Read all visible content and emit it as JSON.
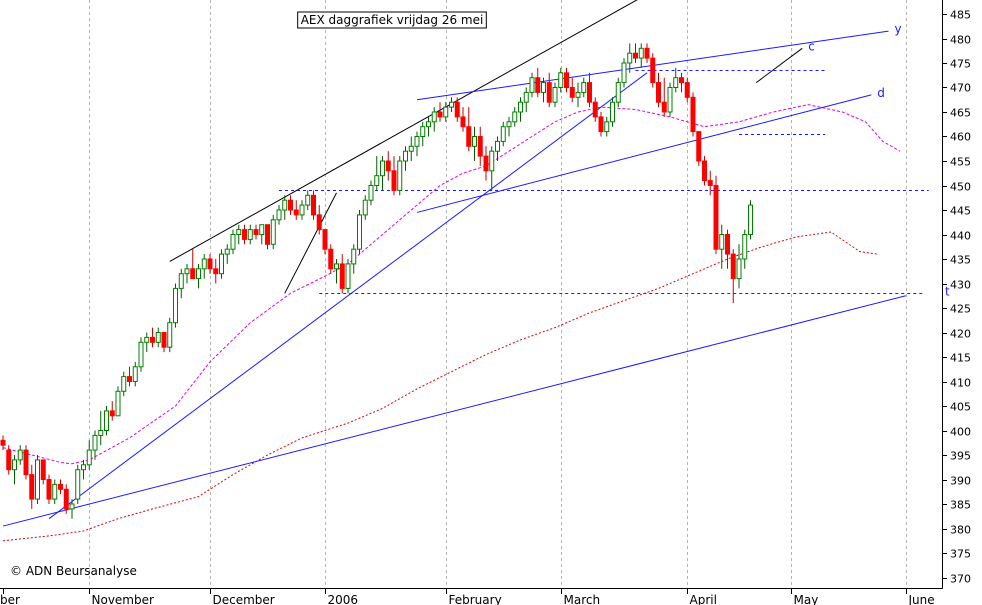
{
  "chart_data": {
    "type": "candlestick",
    "title": "AEX daggrafiek vrijdag 26 mei",
    "credit": "© ADN Beursanalyse",
    "ylim": [
      368,
      488
    ],
    "y_ticks": [
      370,
      375,
      380,
      385,
      390,
      395,
      400,
      405,
      410,
      415,
      420,
      425,
      430,
      435,
      440,
      445,
      450,
      455,
      460,
      465,
      470,
      475,
      480,
      485
    ],
    "months": [
      {
        "label": "ber",
        "start_day": 0
      },
      {
        "label": "November",
        "start_day": 15
      },
      {
        "label": "December",
        "start_day": 36
      },
      {
        "label": "2006",
        "start_day": 56
      },
      {
        "label": "February",
        "start_day": 77
      },
      {
        "label": "March",
        "start_day": 97
      },
      {
        "label": "April",
        "start_day": 119
      },
      {
        "label": "May",
        "start_day": 137
      },
      {
        "label": "June",
        "start_day": 157
      }
    ],
    "candles": [
      [
        398,
        399,
        396,
        397
      ],
      [
        396,
        397,
        391,
        392
      ],
      [
        392,
        395,
        389,
        394
      ],
      [
        394,
        397,
        393,
        396
      ],
      [
        396,
        397,
        390,
        391
      ],
      [
        391,
        393,
        384,
        386
      ],
      [
        386,
        395,
        385,
        394
      ],
      [
        394,
        394,
        389,
        390
      ],
      [
        390,
        391,
        385,
        386
      ],
      [
        386,
        390,
        385,
        389
      ],
      [
        389,
        390,
        387,
        388
      ],
      [
        388,
        389,
        383,
        384
      ],
      [
        384,
        386,
        382,
        385
      ],
      [
        386,
        393,
        385,
        392
      ],
      [
        392,
        394,
        390,
        393
      ],
      [
        393,
        398,
        392,
        396
      ],
      [
        396,
        400,
        394,
        399
      ],
      [
        399,
        404,
        397,
        400
      ],
      [
        400,
        405,
        399,
        404
      ],
      [
        404,
        406,
        402,
        403
      ],
      [
        403,
        409,
        403,
        408
      ],
      [
        408,
        412,
        407,
        411
      ],
      [
        411,
        413,
        409,
        410
      ],
      [
        410,
        414,
        409,
        413
      ],
      [
        413,
        419,
        412,
        418
      ],
      [
        418,
        420,
        416,
        419
      ],
      [
        419,
        421,
        417,
        418
      ],
      [
        418,
        421,
        417,
        420
      ],
      [
        420,
        420,
        416,
        417
      ],
      [
        417,
        423,
        416,
        422
      ],
      [
        422,
        430,
        421,
        429
      ],
      [
        429,
        433,
        427,
        432
      ],
      [
        432,
        434,
        430,
        433
      ],
      [
        433,
        437,
        431,
        431
      ],
      [
        431,
        434,
        429,
        433
      ],
      [
        433,
        436,
        431,
        435
      ],
      [
        435,
        436,
        432,
        433
      ],
      [
        433,
        435,
        430,
        432
      ],
      [
        432,
        437,
        431,
        436
      ],
      [
        436,
        438,
        434,
        437
      ],
      [
        437,
        441,
        436,
        440
      ],
      [
        440,
        442,
        438,
        441
      ],
      [
        441,
        442,
        438,
        439
      ],
      [
        439,
        442,
        438,
        441
      ],
      [
        441,
        442,
        439,
        440
      ],
      [
        440,
        442,
        438,
        442
      ],
      [
        442,
        442,
        437,
        438
      ],
      [
        438,
        444,
        437,
        443
      ],
      [
        443,
        446,
        442,
        445
      ],
      [
        445,
        448,
        443,
        447
      ],
      [
        447,
        448,
        444,
        445
      ],
      [
        445,
        447,
        443,
        444
      ],
      [
        444,
        447,
        443,
        446
      ],
      [
        446,
        449,
        445,
        448
      ],
      [
        448,
        449,
        443,
        444
      ],
      [
        444,
        446,
        440,
        441
      ],
      [
        441,
        441,
        436,
        437
      ],
      [
        437,
        438,
        432,
        433
      ],
      [
        433,
        435,
        430,
        434
      ],
      [
        434,
        436,
        428,
        429
      ],
      [
        429,
        435,
        428,
        434
      ],
      [
        434,
        438,
        432,
        437
      ],
      [
        437,
        445,
        436,
        444
      ],
      [
        444,
        448,
        443,
        447
      ],
      [
        447,
        451,
        446,
        450
      ],
      [
        450,
        456,
        449,
        452
      ],
      [
        452,
        456,
        449,
        455
      ],
      [
        455,
        457,
        451,
        453
      ],
      [
        453,
        456,
        448,
        449
      ],
      [
        449,
        456,
        448,
        455
      ],
      [
        455,
        458,
        453,
        457
      ],
      [
        457,
        460,
        455,
        458
      ],
      [
        458,
        461,
        456,
        460
      ],
      [
        460,
        463,
        458,
        462
      ],
      [
        462,
        464,
        460,
        463
      ],
      [
        463,
        466,
        461,
        465
      ],
      [
        465,
        467,
        463,
        464
      ],
      [
        464,
        467,
        463,
        466
      ],
      [
        466,
        468,
        465,
        467
      ],
      [
        467,
        468,
        463,
        464
      ],
      [
        464,
        466,
        461,
        462
      ],
      [
        462,
        466,
        457,
        458
      ],
      [
        458,
        462,
        455,
        460
      ],
      [
        460,
        462,
        454,
        456
      ],
      [
        456,
        458,
        451,
        453
      ],
      [
        453,
        458,
        449,
        457
      ],
      [
        457,
        460,
        455,
        459
      ],
      [
        459,
        463,
        458,
        462
      ],
      [
        462,
        464,
        460,
        463
      ],
      [
        463,
        466,
        462,
        465
      ],
      [
        465,
        468,
        463,
        467
      ],
      [
        467,
        470,
        465,
        469
      ],
      [
        469,
        473,
        468,
        472
      ],
      [
        472,
        474,
        468,
        469
      ],
      [
        469,
        472,
        467,
        471
      ],
      [
        471,
        473,
        466,
        467
      ],
      [
        467,
        471,
        466,
        470
      ],
      [
        470,
        474,
        469,
        473
      ],
      [
        473,
        474,
        469,
        470
      ],
      [
        470,
        472,
        467,
        468
      ],
      [
        468,
        471,
        466,
        469
      ],
      [
        469,
        472,
        468,
        471
      ],
      [
        471,
        473,
        466,
        467
      ],
      [
        467,
        468,
        463,
        464
      ],
      [
        464,
        465,
        460,
        461
      ],
      [
        461,
        464,
        460,
        463
      ],
      [
        463,
        468,
        462,
        467
      ],
      [
        467,
        472,
        466,
        471
      ],
      [
        471,
        476,
        470,
        475
      ],
      [
        475,
        479,
        473,
        477
      ],
      [
        477,
        479,
        475,
        476
      ],
      [
        476,
        479,
        474,
        478
      ],
      [
        478,
        479,
        475,
        476
      ],
      [
        476,
        477,
        470,
        471
      ],
      [
        471,
        473,
        466,
        467
      ],
      [
        467,
        472,
        464,
        465
      ],
      [
        465,
        471,
        464,
        470
      ],
      [
        470,
        474,
        469,
        472
      ],
      [
        472,
        473,
        469,
        471
      ],
      [
        471,
        472,
        467,
        468
      ],
      [
        468,
        469,
        460,
        461
      ],
      [
        461,
        461,
        454,
        455
      ],
      [
        455,
        456,
        450,
        451
      ],
      [
        451,
        453,
        448,
        450
      ],
      [
        450,
        452,
        436,
        437
      ],
      [
        437,
        442,
        433,
        440
      ],
      [
        440,
        441,
        433,
        436
      ],
      [
        436,
        437,
        426,
        431
      ],
      [
        431,
        438,
        429,
        435
      ],
      [
        435,
        441,
        433,
        440
      ],
      [
        440,
        447,
        439,
        446
      ]
    ],
    "ma_short": [
      [
        0,
        396.5
      ],
      [
        10,
        393.5
      ],
      [
        12,
        393.2
      ],
      [
        15,
        394
      ],
      [
        22,
        398.5
      ],
      [
        30,
        405
      ],
      [
        36,
        414
      ],
      [
        43,
        422
      ],
      [
        50,
        428
      ],
      [
        56,
        431.5
      ],
      [
        60,
        434
      ],
      [
        64,
        438
      ],
      [
        68,
        442
      ],
      [
        72,
        446
      ],
      [
        76,
        450
      ],
      [
        80,
        452.5
      ],
      [
        84,
        454
      ],
      [
        88,
        457
      ],
      [
        92,
        460
      ],
      [
        96,
        463
      ],
      [
        100,
        465
      ],
      [
        104,
        466
      ],
      [
        110,
        465.5
      ],
      [
        116,
        464
      ],
      [
        122,
        462
      ],
      [
        128,
        463
      ],
      [
        134,
        465
      ],
      [
        140,
        466.5
      ],
      [
        146,
        465
      ],
      [
        150,
        463
      ],
      [
        153,
        459
      ],
      [
        156,
        457
      ]
    ],
    "ma_long": [
      [
        0,
        377.5
      ],
      [
        8,
        378.5
      ],
      [
        14,
        379.5
      ],
      [
        20,
        382
      ],
      [
        26,
        384
      ],
      [
        34,
        386.5
      ],
      [
        40,
        391
      ],
      [
        46,
        395
      ],
      [
        52,
        398.5
      ],
      [
        60,
        401.5
      ],
      [
        66,
        404.5
      ],
      [
        72,
        408.5
      ],
      [
        78,
        412
      ],
      [
        84,
        415.5
      ],
      [
        90,
        418.5
      ],
      [
        96,
        421
      ],
      [
        102,
        424
      ],
      [
        108,
        426.5
      ],
      [
        114,
        429
      ],
      [
        120,
        432
      ],
      [
        126,
        435
      ],
      [
        132,
        437.5
      ],
      [
        138,
        439.5
      ],
      [
        144,
        440.5
      ],
      [
        149,
        436.5
      ],
      [
        152,
        436
      ]
    ],
    "trend_lines": [
      {
        "label": "",
        "from": [
          0,
          380.5
        ],
        "to": [
          157,
          427.5
        ]
      },
      {
        "label": "",
        "from": [
          8,
          382
        ],
        "to": [
          112,
          473
        ]
      },
      {
        "label": "",
        "from": [
          29,
          434.5
        ],
        "to": [
          115,
          491
        ]
      },
      {
        "label": "",
        "from": [
          49,
          428
        ],
        "to": [
          58,
          448.5
        ]
      },
      {
        "label": "y",
        "from": [
          72,
          467.5
        ],
        "to": [
          154,
          481.5
        ]
      },
      {
        "label": "d",
        "from": [
          72,
          444.5
        ],
        "to": [
          151,
          468.5
        ]
      },
      {
        "label": "c",
        "from": [
          131,
          471
        ],
        "to": [
          139,
          478
        ]
      }
    ],
    "horizontal_levels": [
      {
        "label": "",
        "y": 449,
        "from": 48,
        "to": 161
      },
      {
        "label": "t",
        "y": 428,
        "from": 55,
        "to": 160
      },
      {
        "label": "",
        "y": 473.5,
        "from": 110,
        "to": 143
      },
      {
        "label": "",
        "y": 460.5,
        "from": 128,
        "to": 143
      }
    ]
  }
}
